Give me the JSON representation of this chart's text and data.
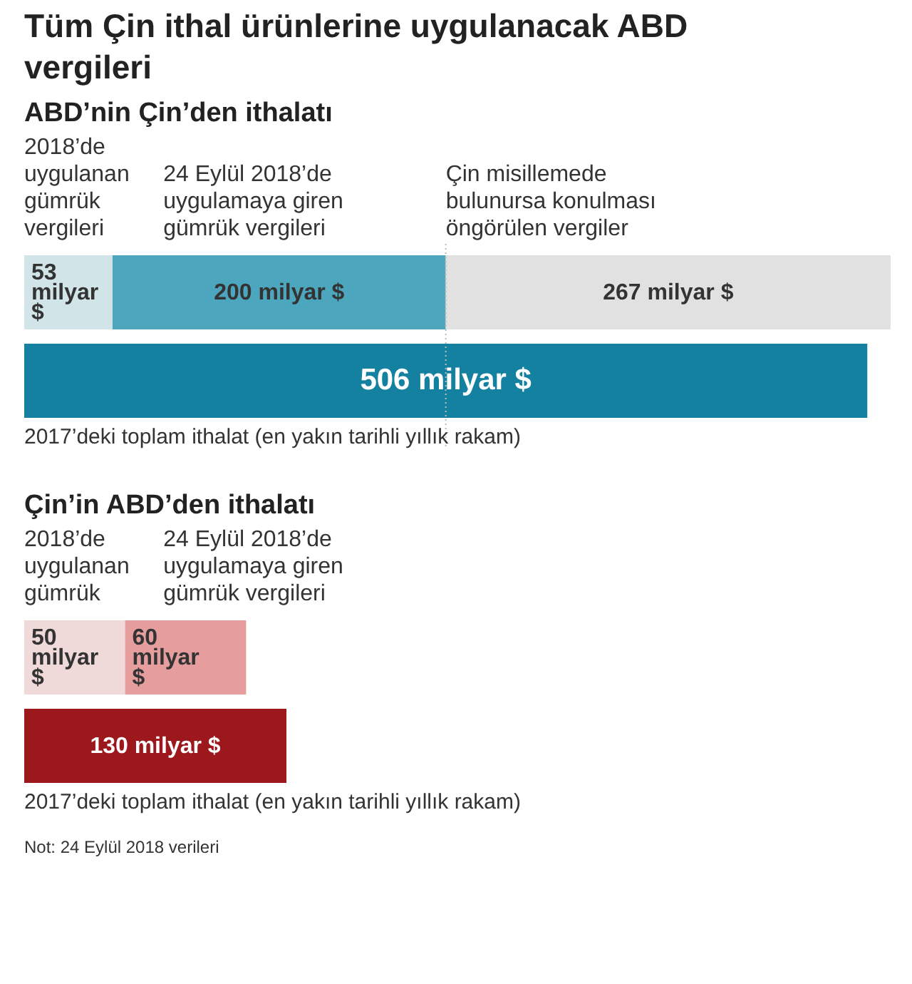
{
  "chart_data": [
    {
      "type": "bar",
      "orientation": "horizontal",
      "stacked": true,
      "title": "Tüm Çin ithal ürünlerine uygulanacak ABD vergileri",
      "subtitle": "ABD’nin Çin’den ithalatı",
      "categories": [
        null,
        null
      ],
      "series": [
        {
          "name": "2018’de uygulanan gümrük vergileri",
          "color": "#d1e4e8",
          "values": [
            53,
            null
          ],
          "value_labels": [
            "53 milyar $",
            null
          ]
        },
        {
          "name": "24 Eylül 2018’de uygulamaya giren gümrük vergileri",
          "color": "#4ca6bd",
          "values": [
            200,
            null
          ],
          "value_labels": [
            "200 milyar $",
            null
          ]
        },
        {
          "name": "Çin misillemede bulunursa konulması öngörülen vergiler",
          "color": "#e1e1e1",
          "values": [
            267,
            null
          ],
          "value_labels": [
            "267 milyar $",
            null
          ]
        },
        {
          "color": "#1581a0",
          "values": [
            null,
            506
          ],
          "value_labels": [
            null,
            "506 milyar $"
          ]
        }
      ],
      "ref_lines": [
        {
          "axis": "x",
          "value": 253,
          "line_style": "dotted",
          "color": "#bbbbbb"
        }
      ],
      "annotations": [
        "2017’deki toplam ithalat (en yakın tarihli yıllık rakam)"
      ]
    },
    {
      "type": "bar",
      "orientation": "horizontal",
      "stacked": true,
      "title": "Çin’in ABD’den ithalatı",
      "categories": [
        null,
        null
      ],
      "series": [
        {
          "name": "2018’de uygulanan gümrük",
          "color": "#efd9d9",
          "values": [
            50,
            null
          ],
          "value_labels": [
            "50 milyar $",
            null
          ]
        },
        {
          "name": "24 Eylül 2018’de uygulamaya giren gümrük vergileri",
          "color": "#e59d9d",
          "values": [
            60,
            null
          ],
          "value_labels": [
            "60 milyar $",
            null
          ]
        },
        {
          "color": "#9d181d",
          "values": [
            null,
            130
          ],
          "value_labels": [
            null,
            "130 milyar $"
          ]
        }
      ],
      "annotations": [
        "2017’deki toplam ithalat (en yakın tarihli yıllık rakam)",
        "Not: 24 Eylül 2018 verileri"
      ]
    }
  ]
}
